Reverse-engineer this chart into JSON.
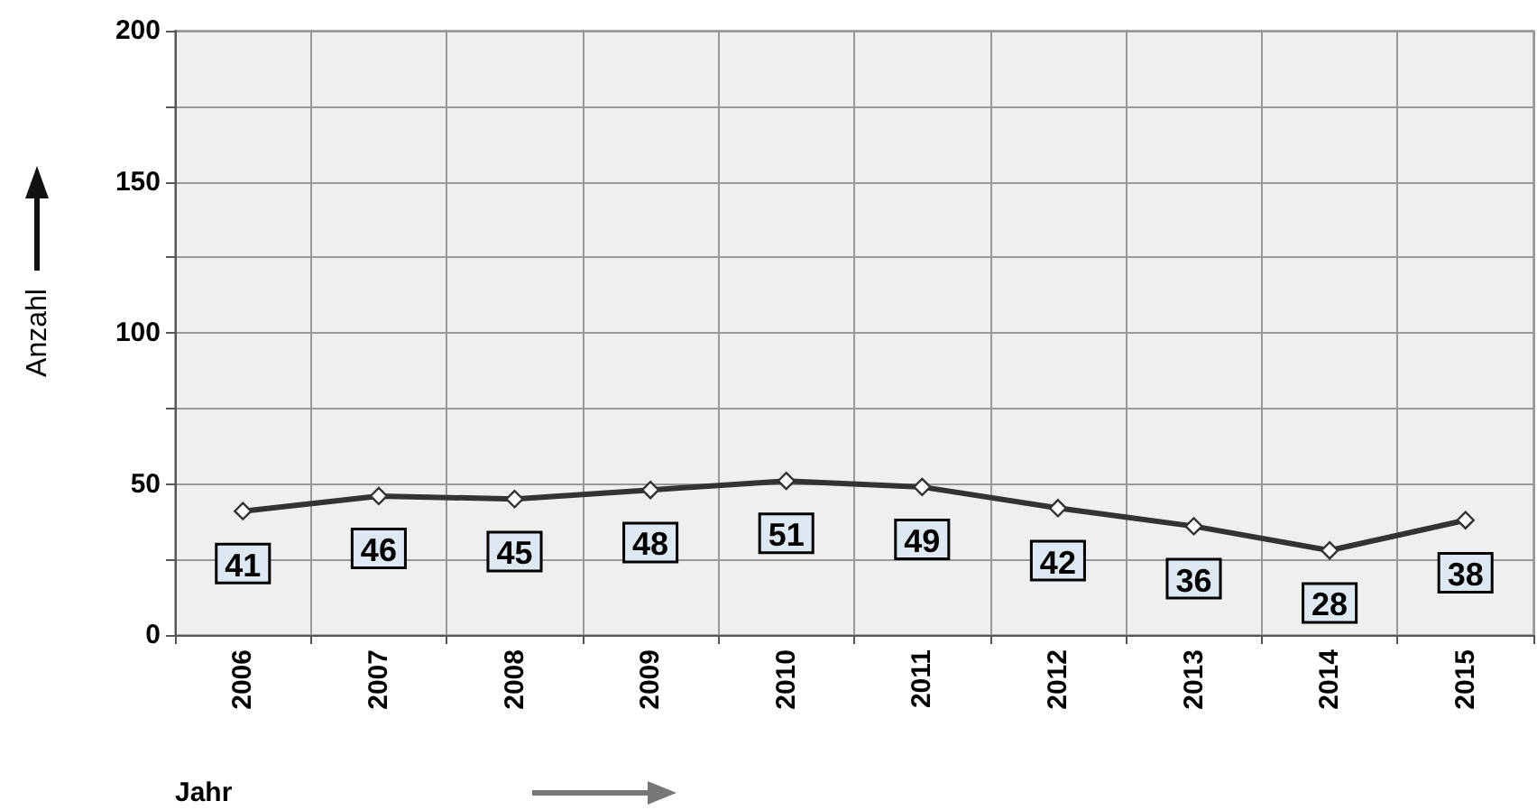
{
  "chart_data": {
    "type": "line",
    "xlabel": "Jahr",
    "ylabel": "Anzahl",
    "categories": [
      "2006",
      "2007",
      "2008",
      "2009",
      "2010",
      "2011",
      "2012",
      "2013",
      "2014",
      "2015"
    ],
    "series": [
      {
        "color": "#333333",
        "values": [
          41,
          46,
          45,
          48,
          51,
          49,
          42,
          36,
          28,
          38
        ]
      }
    ],
    "ylim": [
      0,
      200
    ],
    "yticks": [
      0,
      {
        "value": 25,
        "label": null
      },
      50,
      {
        "value": 75,
        "label": null
      },
      100,
      {
        "value": 125,
        "label": null
      },
      150,
      {
        "value": 175,
        "label": null
      },
      200
    ],
    "grid": true,
    "marker": "diamond",
    "line_style": "solid",
    "data_labels": true
  }
}
